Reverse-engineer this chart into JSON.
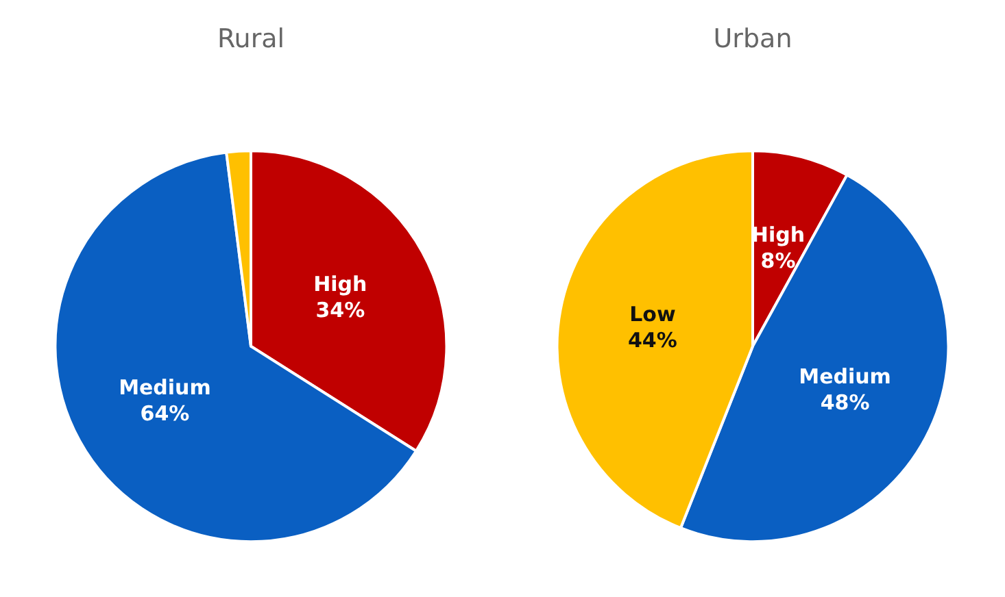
{
  "chart_data": [
    {
      "type": "pie",
      "title": "Rural",
      "categories": [
        "High",
        "Medium",
        null
      ],
      "values": [
        34,
        64,
        2
      ],
      "value_labels": [
        "34%",
        "64%",
        null
      ],
      "colors": [
        "#c00000",
        "#0a5fc2",
        "#ffc000"
      ]
    },
    {
      "type": "pie",
      "title": "Urban",
      "categories": [
        "High",
        "Medium",
        "Low"
      ],
      "values": [
        8,
        48,
        44
      ],
      "value_labels": [
        "8%",
        "48%",
        "44%"
      ],
      "colors": [
        "#c00000",
        "#0a5fc2",
        "#ffc000"
      ]
    }
  ]
}
